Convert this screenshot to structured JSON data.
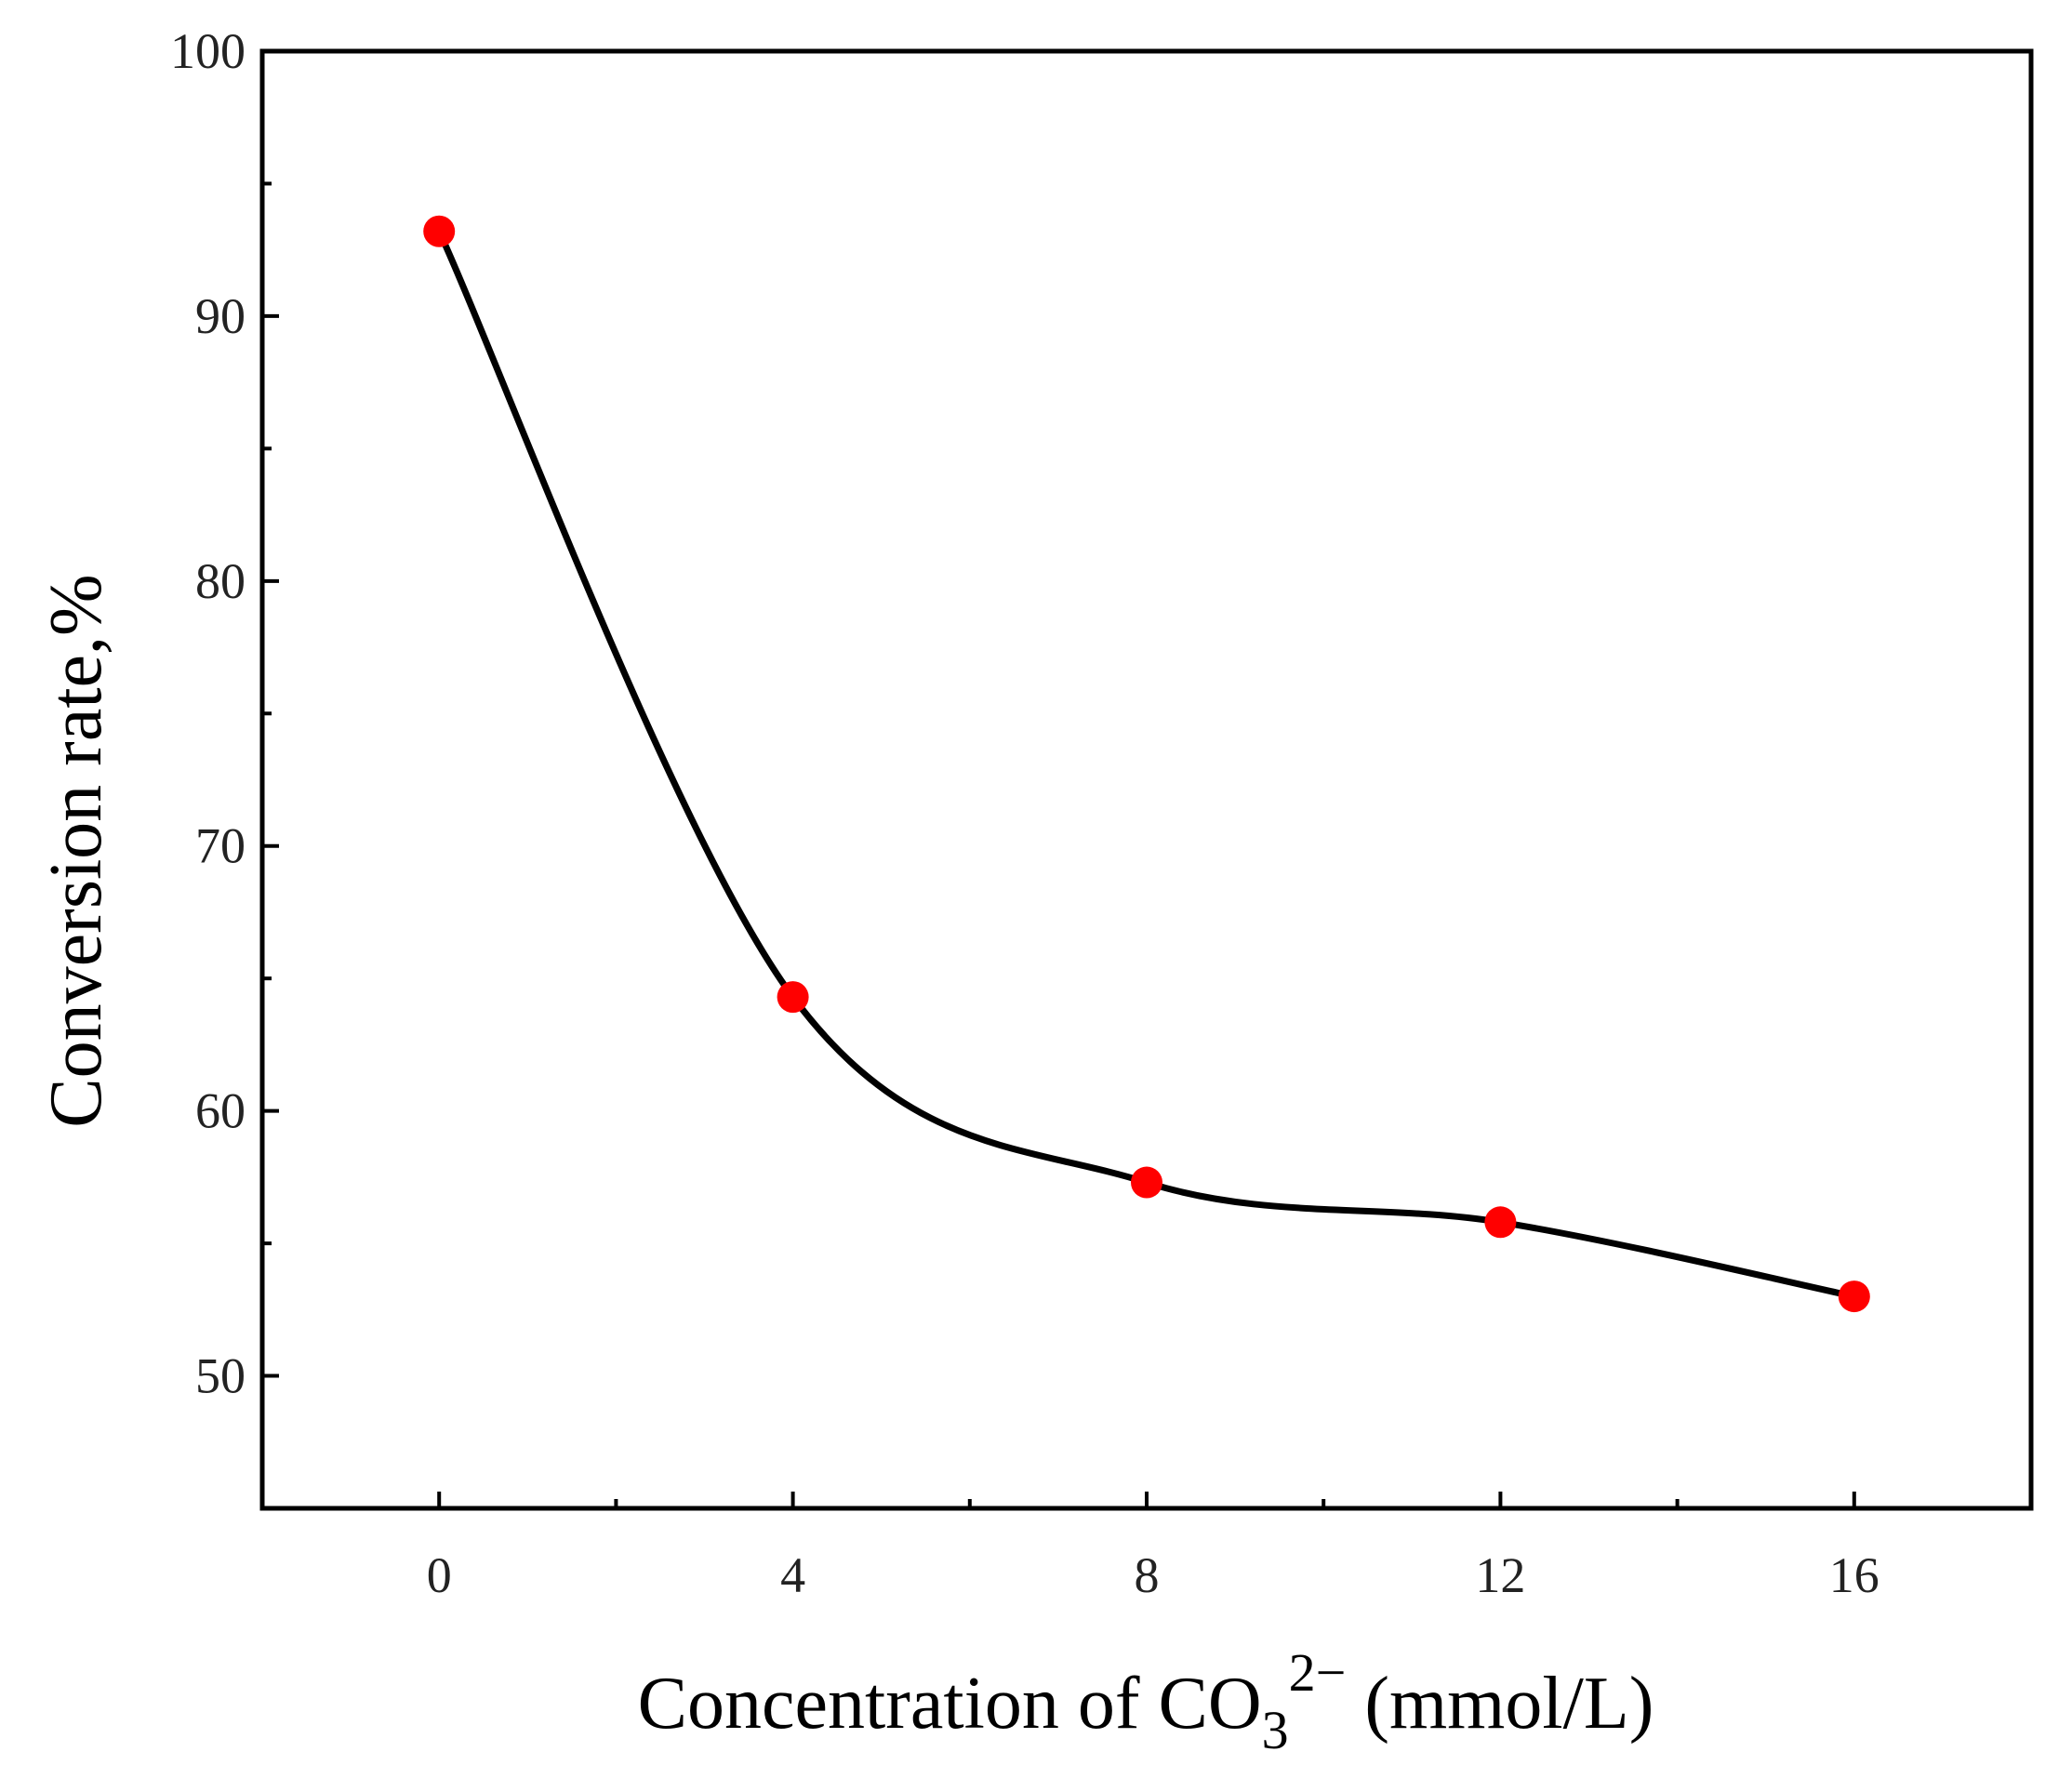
{
  "chart_data": {
    "type": "line",
    "title": "",
    "xlabel": {
      "prefix": "Concentration of CO",
      "subscript": "3",
      "superscript": "2−",
      "suffix": " (mmol/L)"
    },
    "ylabel": "Conversion rate,%",
    "xlim": [
      -2,
      18
    ],
    "ylim": [
      45,
      100
    ],
    "x_ticks": [
      0,
      4,
      8,
      12,
      16
    ],
    "x_minor_ticks": [
      2,
      6,
      10,
      14
    ],
    "y_ticks": [
      50,
      60,
      70,
      80,
      90,
      100
    ],
    "y_minor_ticks": [
      55,
      65,
      75,
      85,
      95
    ],
    "grid": false,
    "series": [
      {
        "name": "Conversion rate",
        "x": [
          0,
          4,
          8,
          12,
          16
        ],
        "y": [
          93.2,
          64.3,
          57.3,
          55.8,
          53.0
        ],
        "line_color": "#000000",
        "marker_color": "#ff0000",
        "smooth": true
      }
    ]
  }
}
